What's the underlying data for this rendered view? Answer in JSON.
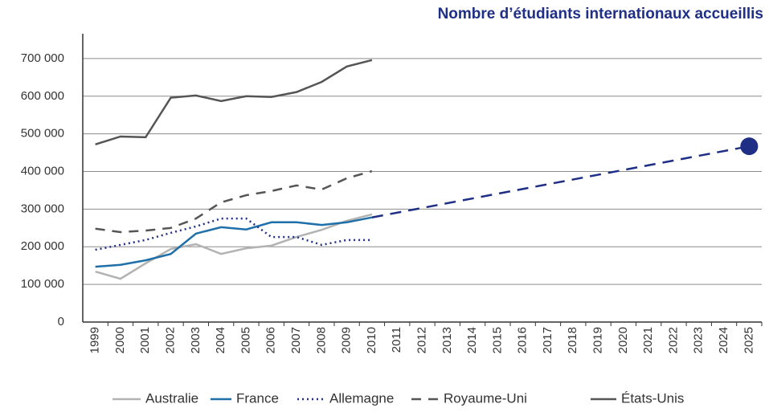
{
  "chart_data": {
    "type": "line",
    "title": "Nombre d’étudiants internationaux accueillis",
    "categories": [
      "1999",
      "2000",
      "2001",
      "2002",
      "2003",
      "2004",
      "2005",
      "2006",
      "2007",
      "2008",
      "2009",
      "2010",
      "2011",
      "2012",
      "2013",
      "2014",
      "2015",
      "2016",
      "2017",
      "2018",
      "2019",
      "2020",
      "2021",
      "2022",
      "2023",
      "2024",
      "2025"
    ],
    "series": [
      {
        "name": "Australie",
        "color": "#b3b3b3",
        "dash": "solid",
        "values": [
          134000,
          115000,
          156000,
          194000,
          207000,
          181000,
          196000,
          203000,
          226000,
          245000,
          269000,
          286000,
          null,
          null,
          null,
          null,
          null,
          null,
          null,
          null,
          null,
          null,
          null,
          null,
          null,
          null,
          null
        ]
      },
      {
        "name": "France",
        "color": "#1f6fa8",
        "dash": "solid",
        "values": [
          147000,
          152000,
          164000,
          181000,
          235000,
          252000,
          246000,
          265000,
          265000,
          258000,
          265000,
          278000,
          null,
          null,
          null,
          null,
          null,
          null,
          null,
          null,
          null,
          null,
          null,
          null,
          null,
          null,
          null
        ]
      },
      {
        "name": "Allemagne",
        "color": "#1f2f86",
        "dash": "dotted",
        "values": [
          192000,
          205000,
          218000,
          237000,
          254000,
          275000,
          275000,
          226000,
          226000,
          205000,
          218000,
          218000,
          null,
          null,
          null,
          null,
          null,
          null,
          null,
          null,
          null,
          null,
          null,
          null,
          null,
          null,
          null
        ]
      },
      {
        "name": "Royaume-Uni",
        "color": "#555555",
        "dash": "dashed",
        "values": [
          248000,
          239000,
          243000,
          250000,
          275000,
          318000,
          337000,
          348000,
          363000,
          352000,
          382000,
          401000,
          null,
          null,
          null,
          null,
          null,
          null,
          null,
          null,
          null,
          null,
          null,
          null,
          null,
          null,
          null
        ]
      },
      {
        "name": "États-Unis",
        "color": "#555555",
        "dash": "solid",
        "values": [
          472000,
          493000,
          491000,
          596000,
          602000,
          587000,
          600000,
          598000,
          611000,
          638000,
          679000,
          696000,
          null,
          null,
          null,
          null,
          null,
          null,
          null,
          null,
          null,
          null,
          null,
          null,
          null,
          null,
          null
        ]
      }
    ],
    "projection": {
      "color": "#1f2f86",
      "x": [
        "2010",
        "2025"
      ],
      "values": [
        278000,
        467000
      ]
    },
    "ylim": [
      0,
      766000
    ],
    "yticks": [
      0,
      {
        "value": 100000,
        "label": "100 000"
      },
      {
        "value": 200000,
        "label": "200 000"
      },
      {
        "value": 300000,
        "label": "300 000"
      },
      {
        "value": 400000,
        "label": "400 000"
      },
      {
        "value": 500000,
        "label": "500 000"
      },
      {
        "value": 600000,
        "label": "600 000"
      },
      {
        "value": 700000,
        "label": "700 000"
      }
    ],
    "grid": true
  }
}
